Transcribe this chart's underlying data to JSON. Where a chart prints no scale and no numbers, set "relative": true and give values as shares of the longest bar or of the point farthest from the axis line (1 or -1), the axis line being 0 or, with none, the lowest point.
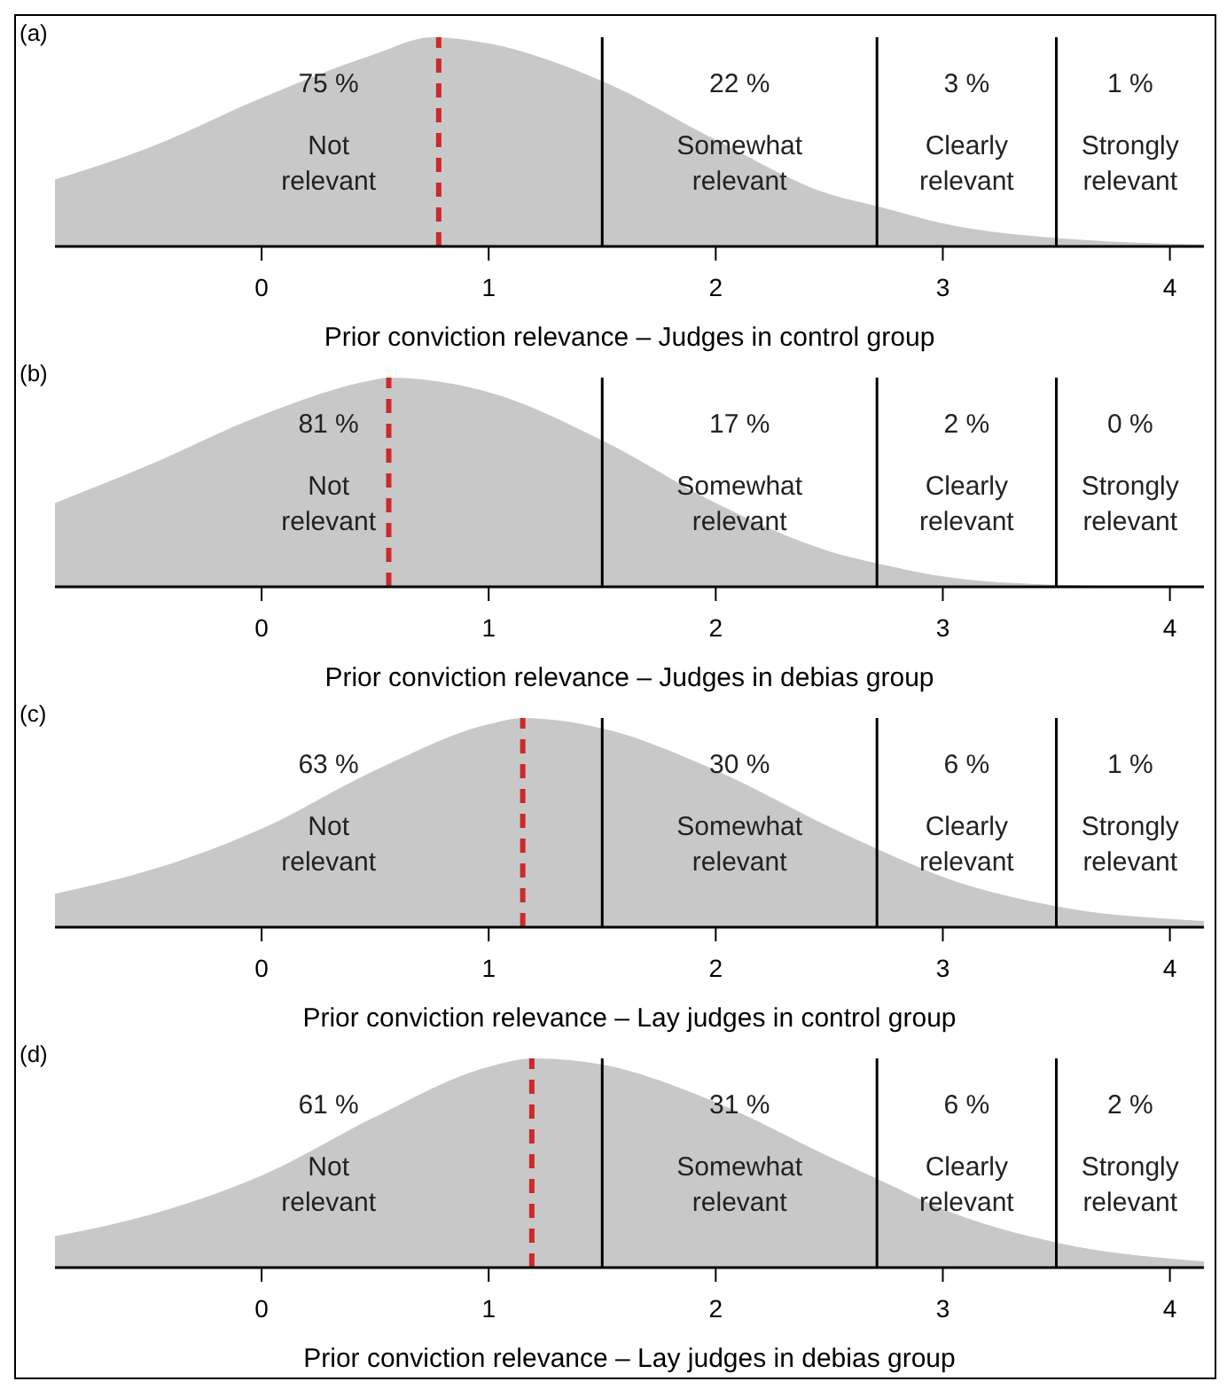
{
  "chart_data": [
    {
      "type": "area",
      "title": "(a)",
      "xlabel": "Prior conviction relevance – Judges in control group",
      "relative": true,
      "color": "#c8c8c8",
      "xlim": [
        -0.91,
        4.15
      ],
      "xticks": [
        0,
        1,
        2,
        3,
        4
      ],
      "x": [
        -0.91,
        -0.5,
        0,
        0.5,
        0.75,
        1,
        1.5,
        2,
        2.5,
        2.72,
        3,
        3.5,
        4.15
      ],
      "values": [
        0.32,
        0.47,
        0.71,
        0.92,
        1,
        0.97,
        0.79,
        0.51,
        0.25,
        0.19,
        0.11,
        0.04,
        0.01
      ],
      "ref_lines": [
        {
          "axis": "x",
          "value": 1.5,
          "color": "#000000",
          "line_style": "solid"
        },
        {
          "axis": "x",
          "value": 2.71,
          "color": "#000000",
          "line_style": "solid"
        },
        {
          "axis": "x",
          "value": 3.5,
          "color": "#000000",
          "line_style": "solid"
        },
        {
          "axis": "x",
          "value": 0.78,
          "color": "#cc2a2a",
          "line_style": "dashed"
        }
      ],
      "annotations": [
        "75 %",
        "Not relevant",
        "22 %",
        "Somewhat relevant",
        "3 %",
        "Clearly relevant",
        "1 %",
        "Strongly relevant"
      ]
    },
    {
      "type": "area",
      "title": "(b)",
      "xlabel": "Prior conviction relevance – Judges in debias group",
      "relative": true,
      "color": "#c8c8c8",
      "xlim": [
        -0.91,
        4.15
      ],
      "xticks": [
        0,
        1,
        2,
        3,
        4
      ],
      "x": [
        -0.91,
        -0.5,
        0,
        0.5,
        0.56,
        1,
        1.5,
        2,
        2.5,
        2.72,
        3,
        3.5,
        4.15
      ],
      "values": [
        0.4,
        0.58,
        0.82,
        0.99,
        1,
        0.93,
        0.7,
        0.4,
        0.17,
        0.11,
        0.05,
        0.01,
        0
      ],
      "ref_lines": [
        {
          "axis": "x",
          "value": 1.5,
          "color": "#000000",
          "line_style": "solid"
        },
        {
          "axis": "x",
          "value": 2.71,
          "color": "#000000",
          "line_style": "solid"
        },
        {
          "axis": "x",
          "value": 3.5,
          "color": "#000000",
          "line_style": "solid"
        },
        {
          "axis": "x",
          "value": 0.56,
          "color": "#cc2a2a",
          "line_style": "dashed"
        }
      ],
      "annotations": [
        "81 %",
        "Not relevant",
        "17 %",
        "Somewhat relevant",
        "2 %",
        "Clearly relevant",
        "0 %",
        "Strongly relevant"
      ]
    },
    {
      "type": "area",
      "title": "(c)",
      "xlabel": "Prior conviction relevance – Lay judges in control group",
      "relative": true,
      "color": "#c8c8c8",
      "xlim": [
        -0.91,
        4.15
      ],
      "xticks": [
        0,
        1,
        2,
        3,
        4
      ],
      "x": [
        -0.91,
        -0.5,
        0,
        0.5,
        1,
        1.15,
        1.5,
        2,
        2.5,
        2.72,
        3,
        3.5,
        4.15
      ],
      "values": [
        0.16,
        0.27,
        0.47,
        0.75,
        0.97,
        1,
        0.95,
        0.75,
        0.48,
        0.37,
        0.24,
        0.1,
        0.03
      ],
      "ref_lines": [
        {
          "axis": "x",
          "value": 1.5,
          "color": "#000000",
          "line_style": "solid"
        },
        {
          "axis": "x",
          "value": 2.71,
          "color": "#000000",
          "line_style": "solid"
        },
        {
          "axis": "x",
          "value": 3.5,
          "color": "#000000",
          "line_style": "solid"
        },
        {
          "axis": "x",
          "value": 1.15,
          "color": "#cc2a2a",
          "line_style": "dashed"
        }
      ],
      "annotations": [
        "63 %",
        "Not relevant",
        "30 %",
        "Somewhat relevant",
        "6 %",
        "Clearly relevant",
        "1 %",
        "Strongly relevant"
      ]
    },
    {
      "type": "area",
      "title": "(d)",
      "xlabel": "Prior conviction relevance – Lay judges in debias group",
      "relative": true,
      "color": "#c8c8c8",
      "xlim": [
        -0.91,
        4.15
      ],
      "xticks": [
        0,
        1,
        2,
        3,
        4
      ],
      "x": [
        -0.91,
        -0.5,
        0,
        0.5,
        1,
        1.2,
        1.5,
        2,
        2.5,
        2.72,
        3,
        3.5,
        4.15
      ],
      "values": [
        0.15,
        0.25,
        0.44,
        0.72,
        0.96,
        1,
        0.97,
        0.79,
        0.53,
        0.42,
        0.28,
        0.12,
        0.03
      ],
      "ref_lines": [
        {
          "axis": "x",
          "value": 1.5,
          "color": "#000000",
          "line_style": "solid"
        },
        {
          "axis": "x",
          "value": 2.71,
          "color": "#000000",
          "line_style": "solid"
        },
        {
          "axis": "x",
          "value": 3.5,
          "color": "#000000",
          "line_style": "solid"
        },
        {
          "axis": "x",
          "value": 1.19,
          "color": "#cc2a2a",
          "line_style": "dashed"
        }
      ],
      "annotations": [
        "61 %",
        "Not relevant",
        "31 %",
        "Somewhat relevant",
        "6 %",
        "Clearly relevant",
        "2 %",
        "Strongly relevant"
      ]
    }
  ]
}
